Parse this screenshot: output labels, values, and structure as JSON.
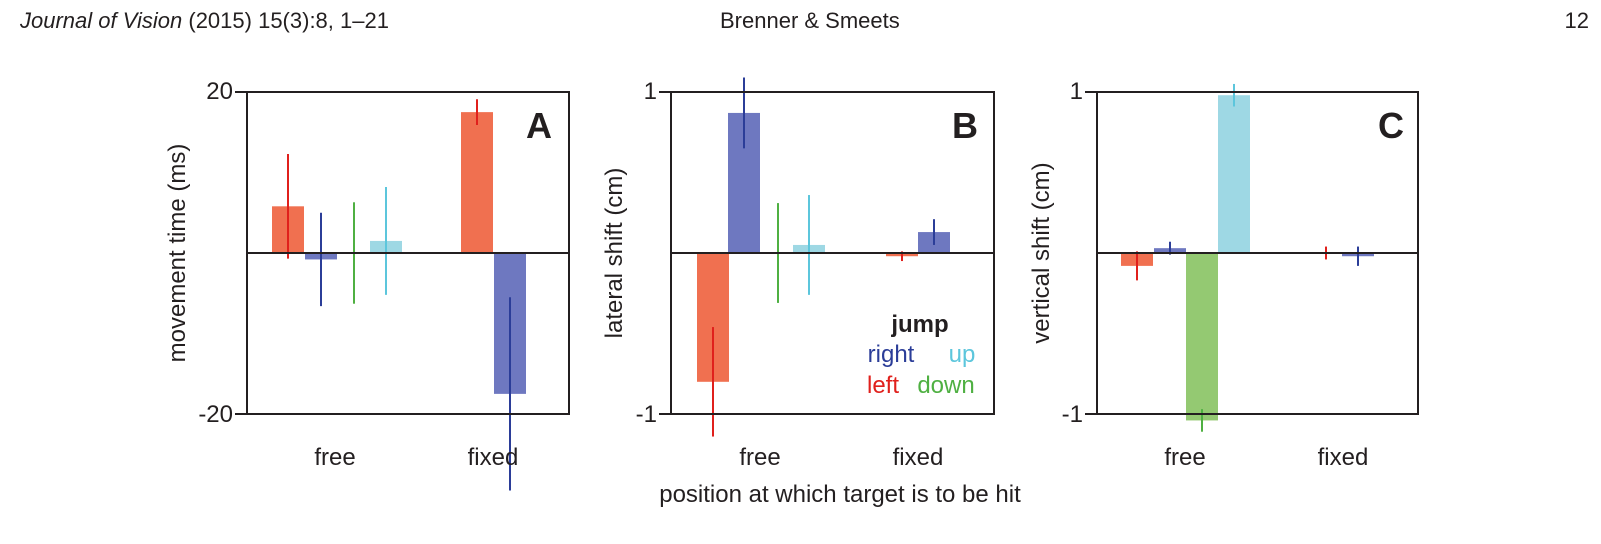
{
  "header": {
    "journal": "Journal of Vision",
    "citation": "(2015) 15(3):8, 1–21",
    "authors": "Brenner & Smeets",
    "page_number": "12"
  },
  "colors": {
    "left": "#f07050",
    "right": "#6e78c0",
    "down": "#94c972",
    "up": "#9ed8e4",
    "err_left": "#e0201c",
    "err_right": "#2b3d98",
    "err_down": "#4fb042",
    "err_up": "#5cc6dc",
    "legend_title": "#231f20",
    "legend_right": "#2b3d98",
    "legend_up": "#5cc6dc",
    "legend_left": "#e0201c",
    "legend_down": "#4fb042"
  },
  "shared_xlabel": "position at which target is to be hit",
  "legend": {
    "title": "jump",
    "items": [
      {
        "label": "right",
        "key": "right"
      },
      {
        "label": "up",
        "key": "up"
      },
      {
        "label": "left",
        "key": "left"
      },
      {
        "label": "down",
        "key": "down"
      }
    ]
  },
  "chart_data": [
    {
      "type": "bar",
      "panel_label": "A",
      "ylabel": "movement time (ms)",
      "ylim": [
        -20,
        20
      ],
      "yticks": [
        "20",
        "-20"
      ],
      "categories": [
        "free",
        "fixed"
      ],
      "series": [
        {
          "name": "left",
          "values": [
            5.8,
            17.5
          ],
          "err": [
            6.5,
            1.6
          ]
        },
        {
          "name": "right",
          "values": [
            -0.8,
            -17.5
          ],
          "err": [
            5.8,
            12.0
          ]
        },
        {
          "name": "down",
          "values": [
            0,
            null
          ],
          "err": [
            6.3,
            null
          ]
        },
        {
          "name": "up",
          "values": [
            1.5,
            null
          ],
          "err": [
            6.7,
            null
          ]
        }
      ]
    },
    {
      "type": "bar",
      "panel_label": "B",
      "ylabel": "lateral shift (cm)",
      "ylim": [
        -1,
        1
      ],
      "yticks": [
        "1",
        "-1"
      ],
      "categories": [
        "free",
        "fixed"
      ],
      "series": [
        {
          "name": "left",
          "values": [
            -0.8,
            -0.02
          ],
          "err": [
            0.34,
            0.03
          ]
        },
        {
          "name": "right",
          "values": [
            0.87,
            0.13
          ],
          "err": [
            0.22,
            0.08
          ]
        },
        {
          "name": "down",
          "values": [
            0,
            null
          ],
          "err": [
            0.31,
            null
          ]
        },
        {
          "name": "up",
          "values": [
            0.05,
            null
          ],
          "err": [
            0.31,
            null
          ]
        }
      ]
    },
    {
      "type": "bar",
      "panel_label": "C",
      "ylabel": "vertical shift (cm)",
      "ylim": [
        -1,
        1
      ],
      "yticks": [
        "1",
        "-1"
      ],
      "categories": [
        "free",
        "fixed"
      ],
      "series": [
        {
          "name": "left",
          "values": [
            -0.08,
            0.0
          ],
          "err": [
            0.09,
            0.04
          ]
        },
        {
          "name": "right",
          "values": [
            0.03,
            -0.02
          ],
          "err": [
            0.04,
            0.06
          ]
        },
        {
          "name": "down",
          "values": [
            -1.04,
            null
          ],
          "err": [
            0.07,
            null
          ]
        },
        {
          "name": "up",
          "values": [
            0.98,
            null
          ],
          "err": [
            0.07,
            null
          ]
        }
      ]
    }
  ]
}
